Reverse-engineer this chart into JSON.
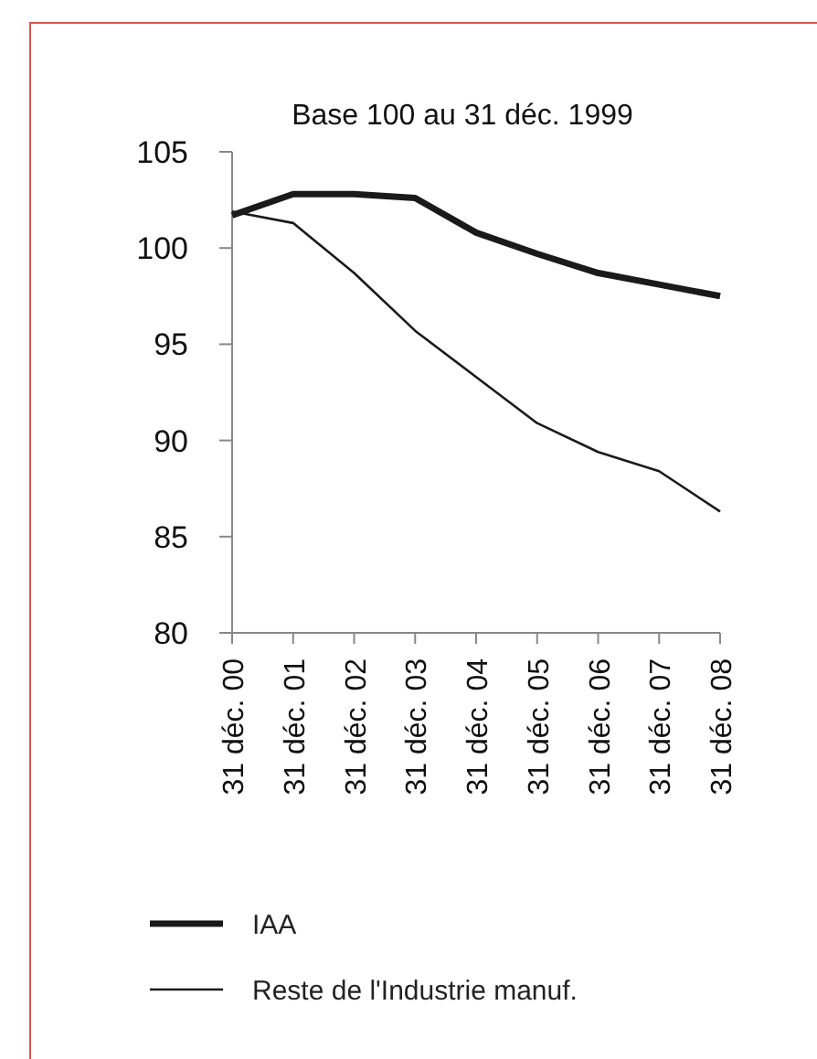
{
  "chart_data": {
    "type": "line",
    "title": "Base 100 au 31 déc. 1999",
    "categories": [
      "31 déc. 00",
      "31 déc. 01",
      "31 déc. 02",
      "31 déc. 03",
      "31 déc. 04",
      "31 déc. 05",
      "31 déc. 06",
      "31 déc. 07",
      "31 déc. 08"
    ],
    "series": [
      {
        "name": "IAA",
        "color": "#1a1a1a",
        "values": [
          101.7,
          102.8,
          102.8,
          102.6,
          100.8,
          99.7,
          98.7,
          98.1,
          97.5
        ]
      },
      {
        "name": "Reste de l'Industrie manuf.",
        "color": "#1a1a1a",
        "values": [
          101.9,
          101.3,
          98.7,
          95.7,
          93.3,
          90.9,
          89.4,
          88.4,
          86.3
        ]
      }
    ],
    "ylim": [
      80,
      105
    ],
    "yticks": [
      80,
      85,
      90,
      95,
      100,
      105
    ],
    "grid": false,
    "legend": "bottom",
    "marker": "none",
    "line_style": "solid"
  }
}
